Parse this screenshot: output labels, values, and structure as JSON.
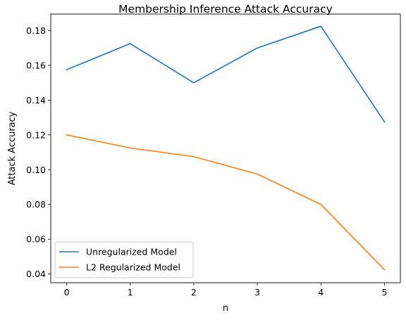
{
  "chart_data": {
    "type": "line",
    "title": "Membership Inference Attack Accuracy",
    "xlabel": "n",
    "ylabel": "Attack Accuracy",
    "x": [
      0,
      1,
      2,
      3,
      4,
      5
    ],
    "xlim": [
      -0.25,
      5.25
    ],
    "ylim": [
      0.035,
      0.1895
    ],
    "xticks": [
      "0",
      "1",
      "2",
      "3",
      "4",
      "5"
    ],
    "yticks": [
      "0.04",
      "0.06",
      "0.08",
      "0.10",
      "0.12",
      "0.14",
      "0.16",
      "0.18"
    ],
    "grid": false,
    "legend_position": "lower-left",
    "series": [
      {
        "name": "Unregularized Model",
        "color": "#1f77b4",
        "values": [
          0.1575,
          0.1725,
          0.15,
          0.17,
          0.1825,
          0.1275
        ]
      },
      {
        "name": "L2 Regularized Model",
        "color": "#ff7f0e",
        "values": [
          0.12,
          0.1125,
          0.1075,
          0.0975,
          0.08,
          0.0425
        ]
      }
    ]
  }
}
